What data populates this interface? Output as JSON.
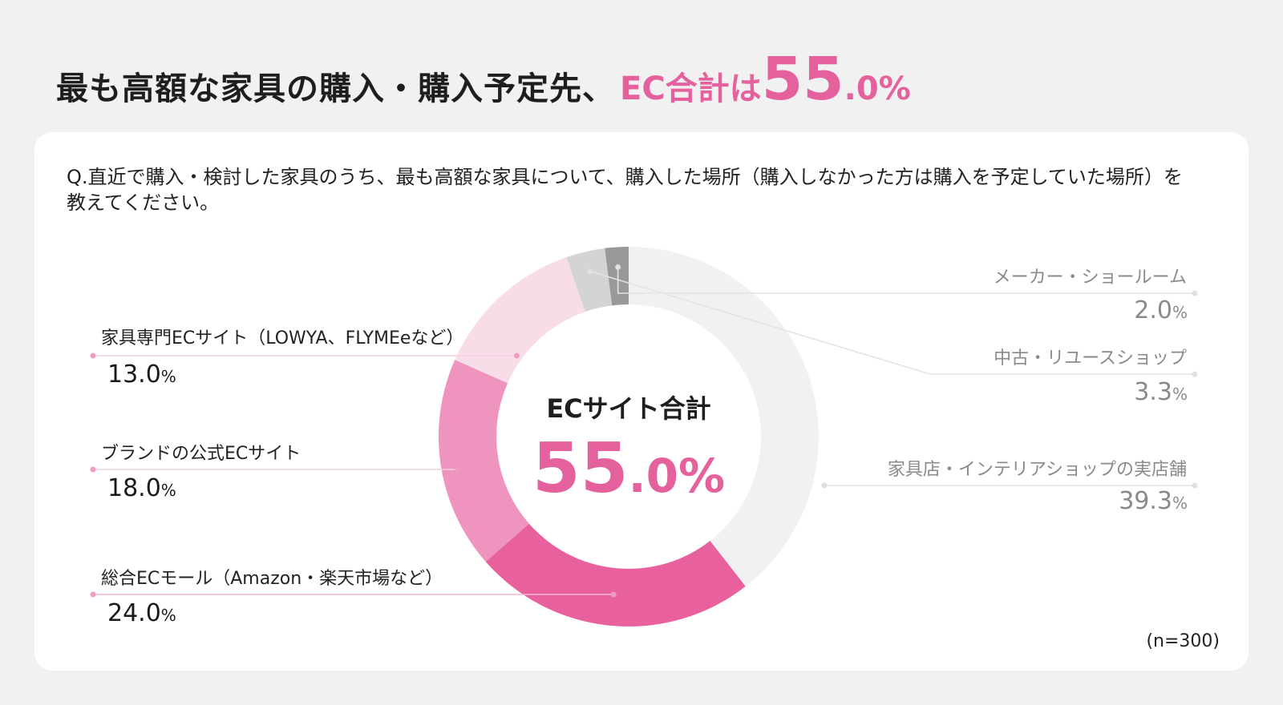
{
  "headline": {
    "main": "最も高額な家具の購入・購入予定先、",
    "ec": "EC合計は",
    "value_int": "55",
    "value_dec": ".0%"
  },
  "question": "Q.直近で購入・検討した家具のうち、最も高額な家具について、購入した場所（購入しなかった方は購入を予定していた場所）を教えてください。",
  "sample": "(n=300)",
  "center": {
    "title": "ECサイト合計",
    "value_int": "55",
    "value_dec": ".0%"
  },
  "chart_data": {
    "type": "pie",
    "donut": true,
    "start": "top, clockwise",
    "unit": "%",
    "slices": [
      {
        "label": "家具店・インテリアショップの実店舗",
        "value": 39.3,
        "num": "39.3",
        "color": "#f1f1f1",
        "side": "right"
      },
      {
        "label": "総合ECモール（Amazon・楽天市場など）",
        "value": 24.0,
        "num": "24.0",
        "color": "#e8609d",
        "side": "left"
      },
      {
        "label": "ブランドの公式ECサイト",
        "value": 18.0,
        "num": "18.0",
        "color": "#ee94be",
        "side": "left"
      },
      {
        "label": "家具専門ECサイト（LOWYA、FLYMEeなど）",
        "value": 13.0,
        "num": "13.0",
        "color": "#f8dde9",
        "side": "left"
      },
      {
        "label": "中古・リユースショップ",
        "value": 3.3,
        "num": "3.3",
        "color": "#d4d4d4",
        "side": "right"
      },
      {
        "label": "メーカー・ショールーム",
        "value": 2.0,
        "num": "2.0",
        "color": "#999999",
        "side": "right"
      }
    ],
    "pct_symbol": "%"
  }
}
